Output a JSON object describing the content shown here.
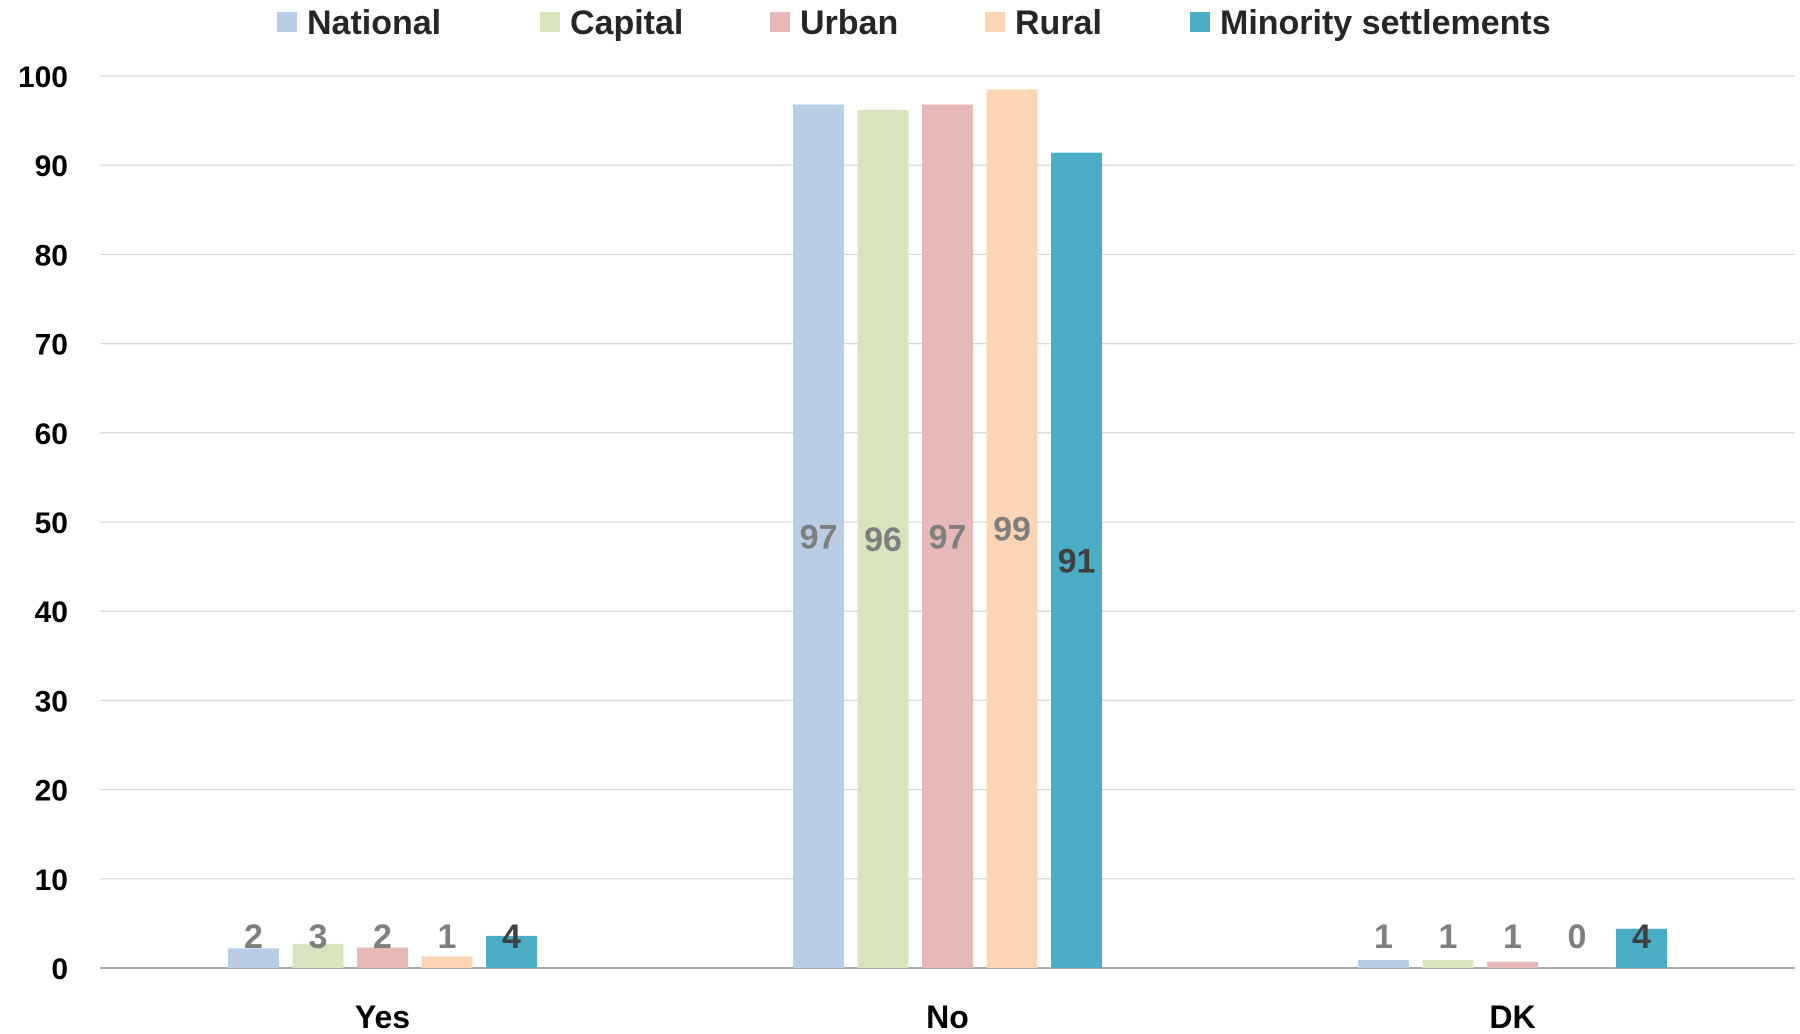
{
  "chart_data": {
    "type": "bar",
    "title": "",
    "xlabel": "",
    "ylabel": "",
    "ylim": [
      0,
      100
    ],
    "yticks": [
      0,
      10,
      20,
      30,
      40,
      50,
      60,
      70,
      80,
      90,
      100
    ],
    "grid": true,
    "legend_position": "top",
    "categories": [
      "Yes",
      "No",
      "DK"
    ],
    "series": [
      {
        "name": "National",
        "color": "#b9cde5",
        "label_color": "#7f7f7f",
        "values": [
          2.2,
          96.8,
          0.9
        ],
        "labels": [
          "2",
          "97",
          "1"
        ]
      },
      {
        "name": "Capital",
        "color": "#d7e4bd",
        "label_color": "#7f7f7f",
        "values": [
          2.7,
          96.2,
          0.9
        ],
        "labels": [
          "3",
          "96",
          "1"
        ]
      },
      {
        "name": "Urban",
        "color": "#e6b9b8",
        "label_color": "#7f7f7f",
        "values": [
          2.3,
          96.8,
          0.7
        ],
        "labels": [
          "2",
          "97",
          "1"
        ]
      },
      {
        "name": "Rural",
        "color": "#fcd5b5",
        "label_color": "#7f7f7f",
        "values": [
          1.3,
          98.5,
          0.0
        ],
        "labels": [
          "1",
          "99",
          "0"
        ]
      },
      {
        "name": "Minority settlements",
        "color": "#4bacc6",
        "label_color": "#404040",
        "values": [
          3.6,
          91.4,
          4.4
        ],
        "labels": [
          "4",
          "91",
          "4"
        ]
      }
    ]
  }
}
